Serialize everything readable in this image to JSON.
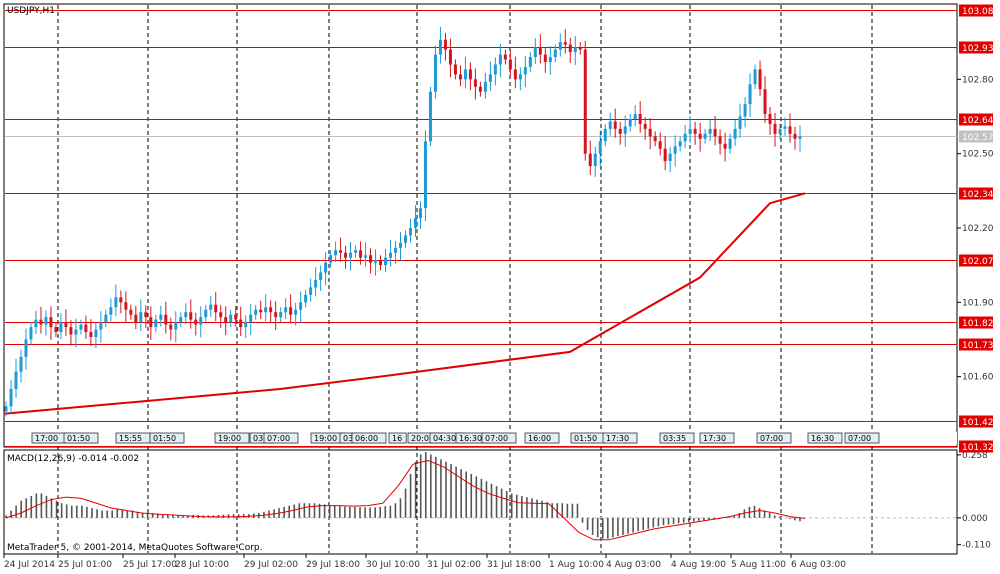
{
  "title": "USDJPY,H1",
  "macd_label": "MACD(12,26,9) -0.014 -0.002",
  "copyright": "MetaTrader 5, © 2001-2014, MetaQuotes Software Corp.",
  "colors": {
    "bull": "#1e9bd7",
    "bear": "#d7141e",
    "level_line": "#e00000",
    "ma": "#e00000",
    "macd_hist": "#555555",
    "macd_signal": "#e00000",
    "grid": "#000000"
  },
  "chart_data": [
    {
      "type": "candlestick",
      "title": "USDJPY,H1",
      "ylim": [
        101.32,
        103.1
      ],
      "y_ticks": [
        101.45,
        101.6,
        101.9,
        102.2,
        102.5,
        102.8,
        102.95
      ],
      "x_date_labels": [
        "24 Jul 2014",
        "25 Jul 01:00",
        "25 Jul 17:00",
        "28 Jul 10:00",
        "29 Jul 02:00",
        "29 Jul 18:00",
        "30 Jul 10:00",
        "31 Jul 02:00",
        "31 Jul 18:00",
        "1 Aug 10:00",
        "4 Aug 03:00",
        "4 Aug 19:00",
        "5 Aug 11:00",
        "6 Aug 03:00"
      ],
      "session_markers": [
        "17:00",
        "01:50",
        "15:55",
        "01:50",
        "19:00",
        "03:",
        "07:00",
        "19:00",
        "03",
        "06:00",
        "16",
        "20:00",
        "04:30",
        "16:30",
        "07:00",
        "16:00",
        "01:50",
        "17:30",
        "03:35",
        "17:30",
        "07:00",
        "16:30",
        "07:00"
      ],
      "price_levels": [
        {
          "label": "103.08",
          "value": 103.08
        },
        {
          "label": "102.93",
          "value": 102.93
        },
        {
          "label": "102.64",
          "value": 102.64
        },
        {
          "label": "102.34",
          "value": 102.34
        },
        {
          "label": "102.07",
          "value": 102.07
        },
        {
          "label": "101.82",
          "value": 101.82
        },
        {
          "label": "101.73",
          "value": 101.73
        },
        {
          "label": "101.42",
          "value": 101.42
        },
        {
          "label": "101.32",
          "value": 101.32
        }
      ],
      "current_price": {
        "label": "102.57",
        "value": 102.57
      },
      "close_series": [
        101.48,
        101.55,
        101.62,
        101.68,
        101.75,
        101.8,
        101.83,
        101.81,
        101.84,
        101.8,
        101.78,
        101.82,
        101.8,
        101.77,
        101.79,
        101.81,
        101.78,
        101.76,
        101.79,
        101.82,
        101.85,
        101.88,
        101.92,
        101.9,
        101.87,
        101.85,
        101.82,
        101.86,
        101.84,
        101.8,
        101.83,
        101.85,
        101.81,
        101.79,
        101.82,
        101.84,
        101.86,
        101.83,
        101.81,
        101.84,
        101.87,
        101.89,
        101.86,
        101.84,
        101.82,
        101.85,
        101.83,
        101.8,
        101.82,
        101.85,
        101.87,
        101.86,
        101.88,
        101.86,
        101.84,
        101.86,
        101.88,
        101.85,
        101.87,
        101.9,
        101.93,
        101.96,
        101.99,
        102.02,
        102.06,
        102.09,
        102.11,
        102.1,
        102.08,
        102.1,
        102.11,
        102.08,
        102.09,
        102.06,
        102.07,
        102.05,
        102.08,
        102.1,
        102.12,
        102.14,
        102.17,
        102.2,
        102.24,
        102.28,
        102.55,
        102.75,
        102.9,
        102.96,
        102.92,
        102.86,
        102.82,
        102.8,
        102.84,
        102.8,
        102.77,
        102.75,
        102.79,
        102.82,
        102.86,
        102.9,
        102.88,
        102.84,
        102.8,
        102.82,
        102.85,
        102.89,
        102.93,
        102.9,
        102.87,
        102.89,
        102.92,
        102.95,
        102.94,
        102.91,
        102.93,
        102.92,
        102.5,
        102.45,
        102.5,
        102.55,
        102.6,
        102.63,
        102.6,
        102.58,
        102.61,
        102.64,
        102.66,
        102.62,
        102.6,
        102.57,
        102.55,
        102.52,
        102.47,
        102.5,
        102.53,
        102.55,
        102.58,
        102.6,
        102.58,
        102.56,
        102.58,
        102.6,
        102.57,
        102.54,
        102.52,
        102.56,
        102.6,
        102.65,
        102.7,
        102.78,
        102.84,
        102.76,
        102.66,
        102.62,
        102.58,
        102.6,
        102.61,
        102.58,
        102.56,
        102.57
      ],
      "ma_series": [
        101.45,
        101.55,
        101.6,
        101.7,
        102.0,
        102.3,
        102.34
      ],
      "ma_color": "#e00000"
    },
    {
      "type": "bar",
      "title": "MACD(12,26,9) -0.014 -0.002",
      "ylim": [
        -0.14,
        0.27
      ],
      "y_ticks": [
        0.258,
        0.0,
        -0.11
      ],
      "y_tick_labels": [
        "0.258",
        "0.000",
        "-0.110"
      ],
      "hist_series": [
        0.01,
        0.03,
        0.05,
        0.07,
        0.08,
        0.09,
        0.1,
        0.1,
        0.09,
        0.08,
        0.07,
        0.06,
        0.055,
        0.05,
        0.05,
        0.05,
        0.045,
        0.04,
        0.035,
        0.03,
        0.03,
        0.03,
        0.035,
        0.035,
        0.03,
        0.03,
        0.025,
        0.02,
        0.02,
        0.02,
        0.018,
        0.015,
        0.012,
        0.01,
        0.01,
        0.01,
        0.01,
        0.012,
        0.012,
        0.01,
        0.01,
        0.01,
        0.012,
        0.013,
        0.015,
        0.015,
        0.015,
        0.015,
        0.015,
        0.018,
        0.02,
        0.025,
        0.03,
        0.035,
        0.04,
        0.045,
        0.05,
        0.055,
        0.06,
        0.06,
        0.06,
        0.06,
        0.058,
        0.055,
        0.052,
        0.05,
        0.048,
        0.046,
        0.045,
        0.045,
        0.044,
        0.043,
        0.043,
        0.043,
        0.045,
        0.048,
        0.05,
        0.06,
        0.08,
        0.12,
        0.18,
        0.23,
        0.26,
        0.27,
        0.26,
        0.25,
        0.24,
        0.23,
        0.22,
        0.21,
        0.2,
        0.19,
        0.18,
        0.17,
        0.16,
        0.15,
        0.14,
        0.13,
        0.12,
        0.11,
        0.1,
        0.095,
        0.09,
        0.085,
        0.08,
        0.075,
        0.07,
        0.065,
        0.06,
        0.06,
        0.06,
        0.058,
        0.058,
        0.058,
        -0.02,
        -0.05,
        -0.07,
        -0.08,
        -0.085,
        -0.085,
        -0.08,
        -0.075,
        -0.07,
        -0.065,
        -0.06,
        -0.055,
        -0.05,
        -0.045,
        -0.04,
        -0.035,
        -0.03,
        -0.028,
        -0.025,
        -0.022,
        -0.02,
        -0.018,
        -0.015,
        -0.012,
        -0.01,
        -0.008,
        -0.005,
        -0.002,
        0.0,
        0.005,
        0.01,
        0.02,
        0.035,
        0.045,
        0.05,
        0.04,
        0.03,
        0.02,
        0.01,
        0.005,
        0.0,
        -0.005,
        -0.01,
        -0.014
      ],
      "signal_series": [
        0.0,
        0.02,
        0.05,
        0.075,
        0.085,
        0.08,
        0.06,
        0.04,
        0.03,
        0.02,
        0.015,
        0.012,
        0.008,
        0.005,
        0.004,
        0.004,
        0.006,
        0.01,
        0.018,
        0.03,
        0.045,
        0.05,
        0.05,
        0.048,
        0.05,
        0.06,
        0.13,
        0.22,
        0.235,
        0.21,
        0.17,
        0.13,
        0.1,
        0.08,
        0.062,
        0.06,
        0.058,
        0.0,
        -0.06,
        -0.09,
        -0.09,
        -0.075,
        -0.06,
        -0.045,
        -0.035,
        -0.025,
        -0.015,
        -0.005,
        0.005,
        0.02,
        0.03,
        0.02,
        0.005,
        -0.002
      ]
    }
  ]
}
